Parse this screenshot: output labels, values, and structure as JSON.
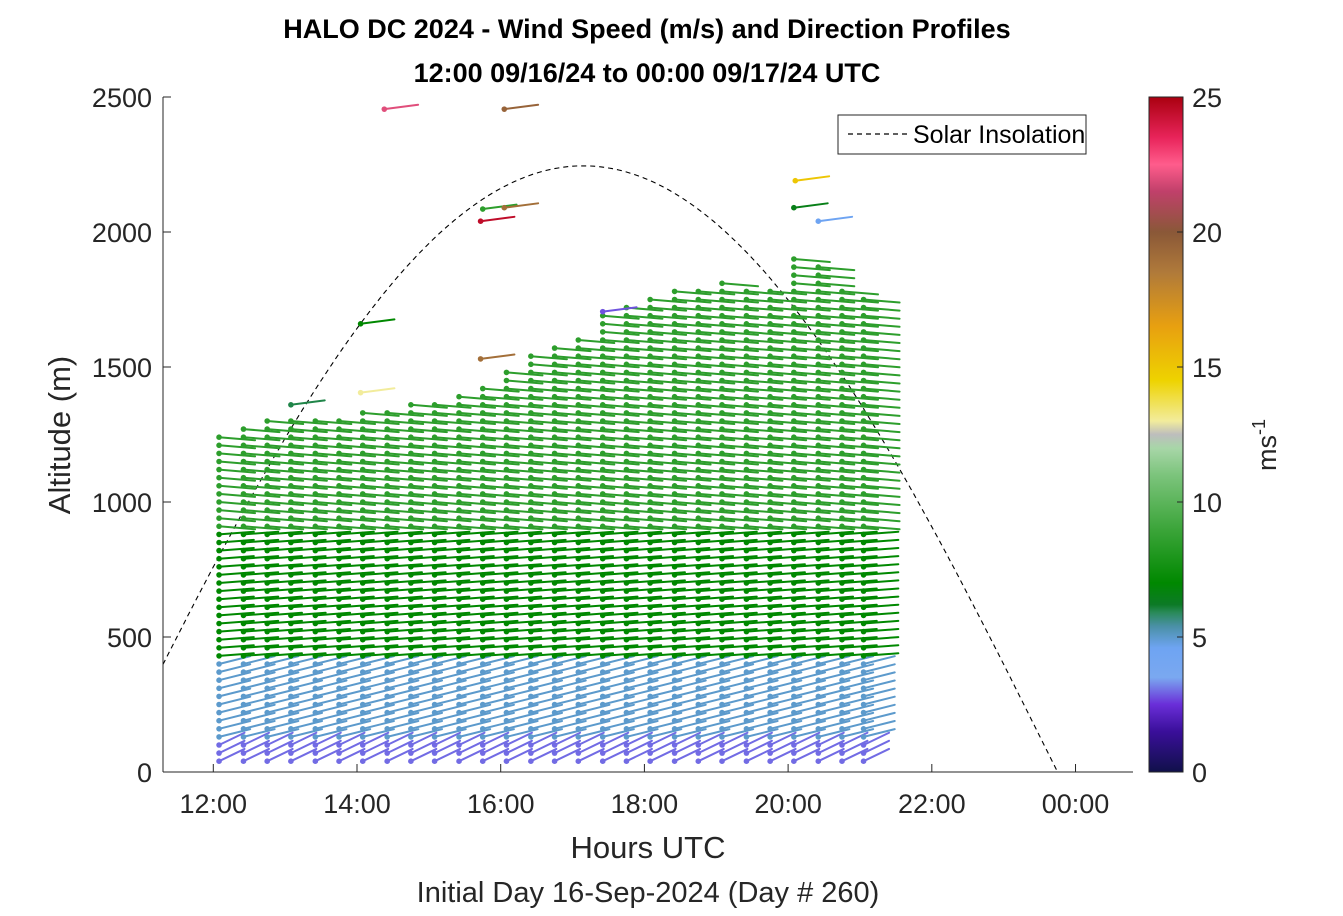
{
  "chart_data": {
    "type": "scatter",
    "title": "HALO DC 2024 - Wind Speed (m/s) and Direction Profiles",
    "subtitle": "12:00 09/16/24 to 00:00 09/17/24  UTC",
    "xlabel": "Hours UTC",
    "xlabel2": "Initial Day 16-Sep-2024 (Day # 260)",
    "ylabel": "Altitude (m)",
    "xlim": [
      11.3,
      24.8
    ],
    "ylim": [
      0,
      2500
    ],
    "x_ticks": [
      12,
      14,
      16,
      18,
      20,
      22,
      24
    ],
    "x_tick_labels": [
      "12:00",
      "14:00",
      "16:00",
      "18:00",
      "20:00",
      "22:00",
      "00:00"
    ],
    "y_ticks": [
      0,
      500,
      1000,
      1500,
      2000,
      2500
    ],
    "y_tick_labels": [
      "0",
      "500",
      "1000",
      "1500",
      "2000",
      "2500"
    ],
    "colorbar": {
      "label": "ms-1",
      "label_base": "ms",
      "label_sup": "-1",
      "min": 0,
      "max": 25,
      "ticks": [
        0,
        5,
        10,
        15,
        20,
        25
      ],
      "tick_labels": [
        "0",
        "5",
        "10",
        "15",
        "20",
        "25"
      ],
      "stops": [
        [
          0,
          "#10104a"
        ],
        [
          1.5,
          "#3a0f9a"
        ],
        [
          2.5,
          "#6a2ed8"
        ],
        [
          3.5,
          "#7aa8f0"
        ],
        [
          4.6,
          "#6ea4f2"
        ],
        [
          5.4,
          "#4a90a6"
        ],
        [
          5.9,
          "#2a8a5a"
        ],
        [
          6.2,
          "#0c7a26"
        ],
        [
          7.0,
          "#008800"
        ],
        [
          9.0,
          "#3ca53a"
        ],
        [
          11.0,
          "#7cc47c"
        ],
        [
          12.0,
          "#a8d6a8"
        ],
        [
          12.5,
          "#bdbdbd"
        ],
        [
          13.0,
          "#f2ec9c"
        ],
        [
          14.5,
          "#eed300"
        ],
        [
          16.5,
          "#e8a010"
        ],
        [
          18.5,
          "#b07a3a"
        ],
        [
          20.0,
          "#8a5838"
        ],
        [
          21.5,
          "#c0406a"
        ],
        [
          22.5,
          "#ff5c8c"
        ],
        [
          23.5,
          "#e8245a"
        ],
        [
          25,
          "#aa0010"
        ]
      ]
    },
    "legend": {
      "entries": [
        "Solar Insolation"
      ],
      "placement": "top-right"
    },
    "solar_insolation": {
      "style": "dashed",
      "color": "#000000",
      "peak_time": 17.15,
      "peak_altitude": 2245,
      "zero_time": 23.75
    },
    "wind_profiles": {
      "times": [
        12.08,
        12.42,
        12.75,
        13.08,
        13.42,
        13.75,
        14.08,
        14.42,
        14.75,
        15.08,
        15.42,
        15.75,
        16.08,
        16.42,
        16.75,
        17.08,
        17.42,
        17.75,
        18.08,
        18.42,
        18.75,
        19.08,
        19.42,
        19.75,
        20.08,
        20.42,
        20.75,
        21.05
      ],
      "tops": [
        1255,
        1285,
        1320,
        1325,
        1320,
        1325,
        1330,
        1340,
        1360,
        1370,
        1410,
        1445,
        1495,
        1540,
        1575,
        1620,
        1700,
        1735,
        1775,
        1800,
        1800,
        1810,
        1800,
        1780,
        1915,
        1895,
        1790,
        1750
      ],
      "level_spacing_m": 30,
      "lowest_level_m": 40,
      "barb_length": "short",
      "regimes": [
        {
          "max_altitude": 120,
          "speed": 3.0,
          "direction_deg": 225
        },
        {
          "max_altitude": 420,
          "speed": 5.0,
          "direction_deg": 240
        },
        {
          "max_altitude": 900,
          "speed": 7.0,
          "direction_deg": 255
        },
        {
          "max_altitude": 2000,
          "speed": 8.5,
          "direction_deg": 270
        }
      ]
    },
    "isolated_barbs": [
      {
        "x": 14.38,
        "y": 2455,
        "speed": 22.0
      },
      {
        "x": 16.05,
        "y": 2455,
        "speed": 19.5
      },
      {
        "x": 15.75,
        "y": 2085,
        "speed": 8.5
      },
      {
        "x": 15.72,
        "y": 2040,
        "speed": 24.5
      },
      {
        "x": 16.05,
        "y": 2090,
        "speed": 19.0
      },
      {
        "x": 14.05,
        "y": 1660,
        "speed": 7.0
      },
      {
        "x": 14.05,
        "y": 1405,
        "speed": 13.0
      },
      {
        "x": 13.08,
        "y": 1360,
        "speed": 6.0
      },
      {
        "x": 15.72,
        "y": 1530,
        "speed": 19.0
      },
      {
        "x": 17.42,
        "y": 1705,
        "speed": 2.8
      },
      {
        "x": 20.1,
        "y": 2190,
        "speed": 15.0
      },
      {
        "x": 20.08,
        "y": 2090,
        "speed": 6.5
      },
      {
        "x": 20.42,
        "y": 2040,
        "speed": 4.6
      }
    ]
  }
}
